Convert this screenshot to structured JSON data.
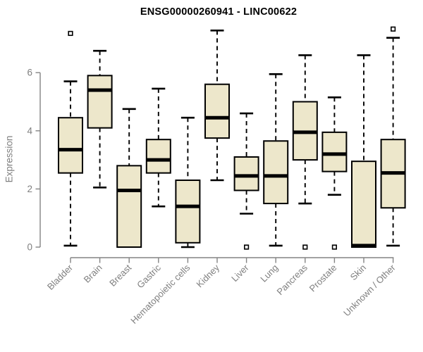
{
  "chart_data": {
    "type": "boxplot",
    "title": "ENSG00000260941 - LINC00622",
    "ylabel": "Expression",
    "xlabel": "",
    "ylim": [
      0,
      7.6
    ],
    "yticks": [
      0,
      2,
      4,
      6
    ],
    "grid": false,
    "legend": "none",
    "colors": {
      "box_fill": "#EDE7CB",
      "box_stroke": "#000000",
      "median": "#000000",
      "whisker": "#000000",
      "axis": "#848484",
      "tick_label": "#7f7f7f",
      "title": "#000000",
      "background": "#ffffff"
    },
    "categories": [
      "Bladder",
      "Brain",
      "Breast",
      "Gastric",
      "Hematopoietic cells",
      "Kidney",
      "Liver",
      "Lung",
      "Pancreas",
      "Prostate",
      "Skin",
      "Unknown / Other"
    ],
    "series": [
      {
        "category": "Bladder",
        "whisker_low": 0.05,
        "q1": 2.55,
        "median": 3.35,
        "q3": 4.45,
        "whisker_high": 5.7,
        "outliers": [
          7.35
        ]
      },
      {
        "category": "Brain",
        "whisker_low": 2.05,
        "q1": 4.1,
        "median": 5.4,
        "q3": 5.9,
        "whisker_high": 6.75,
        "outliers": []
      },
      {
        "category": "Breast",
        "whisker_low": null,
        "q1": 0.0,
        "median": 1.95,
        "q3": 2.8,
        "whisker_high": 4.75,
        "outliers": []
      },
      {
        "category": "Gastric",
        "whisker_low": 1.4,
        "q1": 2.55,
        "median": 3.0,
        "q3": 3.7,
        "whisker_high": 5.45,
        "outliers": []
      },
      {
        "category": "Hematopoietic cells",
        "whisker_low": 0.0,
        "q1": 0.15,
        "median": 1.4,
        "q3": 2.3,
        "whisker_high": 4.45,
        "outliers": []
      },
      {
        "category": "Kidney",
        "whisker_low": 2.3,
        "q1": 3.75,
        "median": 4.45,
        "q3": 5.6,
        "whisker_high": 7.45,
        "outliers": []
      },
      {
        "category": "Liver",
        "whisker_low": 1.15,
        "q1": 1.95,
        "median": 2.45,
        "q3": 3.1,
        "whisker_high": 4.6,
        "outliers": [
          0.0
        ]
      },
      {
        "category": "Lung",
        "whisker_low": 0.05,
        "q1": 1.5,
        "median": 2.45,
        "q3": 3.65,
        "whisker_high": 5.95,
        "outliers": []
      },
      {
        "category": "Pancreas",
        "whisker_low": 1.5,
        "q1": 3.0,
        "median": 3.95,
        "q3": 5.0,
        "whisker_high": 6.6,
        "outliers": [
          0.0
        ]
      },
      {
        "category": "Prostate",
        "whisker_low": 1.8,
        "q1": 2.6,
        "median": 3.2,
        "q3": 3.95,
        "whisker_high": 5.15,
        "outliers": [
          0.0
        ]
      },
      {
        "category": "Skin",
        "whisker_low": null,
        "q1": 0.0,
        "median": 0.05,
        "q3": 2.95,
        "whisker_high": 6.6,
        "outliers": []
      },
      {
        "category": "Unknown / Other",
        "whisker_low": 0.05,
        "q1": 1.35,
        "median": 2.55,
        "q3": 3.7,
        "whisker_high": 7.2,
        "outliers": [
          7.5
        ]
      }
    ]
  }
}
